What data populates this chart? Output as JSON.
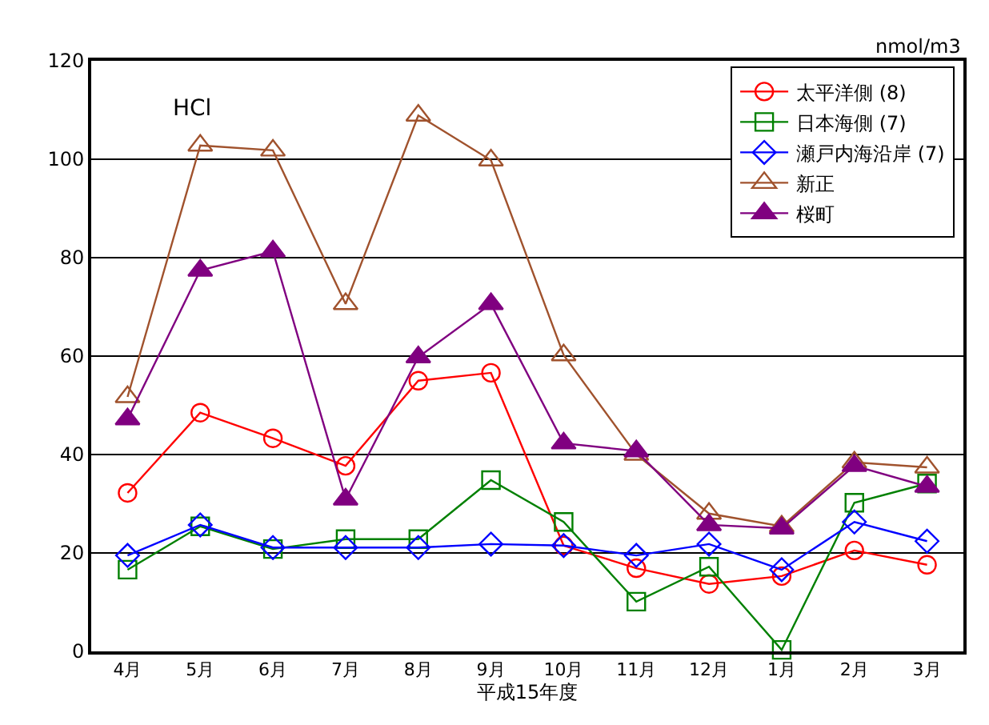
{
  "chart_data": {
    "type": "line",
    "ylabel": "nmol/m3",
    "xlabel": "平成15年度",
    "annotations": [
      "HCl"
    ],
    "categories": [
      "4月",
      "5月",
      "6月",
      "7月",
      "8月",
      "9月",
      "10月",
      "11月",
      "12月",
      "1月",
      "2月",
      "3月"
    ],
    "series": [
      {
        "name": "太平洋側 (8)",
        "color": "#ff0000",
        "marker": "circle",
        "values": [
          32.2,
          48.5,
          43.3,
          37.7,
          55,
          56.6,
          21.5,
          16.9,
          13.7,
          15.3,
          20.5,
          17.6
        ]
      },
      {
        "name": "日本海側 (7)",
        "color": "#008000",
        "marker": "square",
        "values": [
          16.6,
          25.4,
          20.8,
          22.8,
          22.8,
          34.8,
          26.3,
          10.1,
          17.2,
          0.3,
          30.2,
          34.1
        ]
      },
      {
        "name": "瀬戸内海沿岸 (7)",
        "color": "#0000ff",
        "marker": "diamond",
        "values": [
          19.5,
          25.7,
          21.1,
          21.1,
          21.1,
          21.8,
          21.5,
          19.5,
          21.8,
          16.6,
          26.3,
          22.4
        ]
      },
      {
        "name": "新正",
        "color": "#a0522d",
        "marker": "triangle",
        "values": [
          51.7,
          102.8,
          101.8,
          70.6,
          108.9,
          99.8,
          60.2,
          40,
          28,
          25.4,
          38.4,
          37.4
        ]
      },
      {
        "name": "桜町",
        "color": "#800080",
        "marker": "triangle-filled",
        "values": [
          47.2,
          77.4,
          81.3,
          30.9,
          59.8,
          70.6,
          42.3,
          40.7,
          25.7,
          25,
          37.7,
          33.5
        ]
      }
    ],
    "ylim": [
      0,
      120
    ],
    "yticks": [
      0,
      20,
      40,
      60,
      80,
      100,
      120
    ],
    "grid": "y",
    "legend": "top right"
  }
}
